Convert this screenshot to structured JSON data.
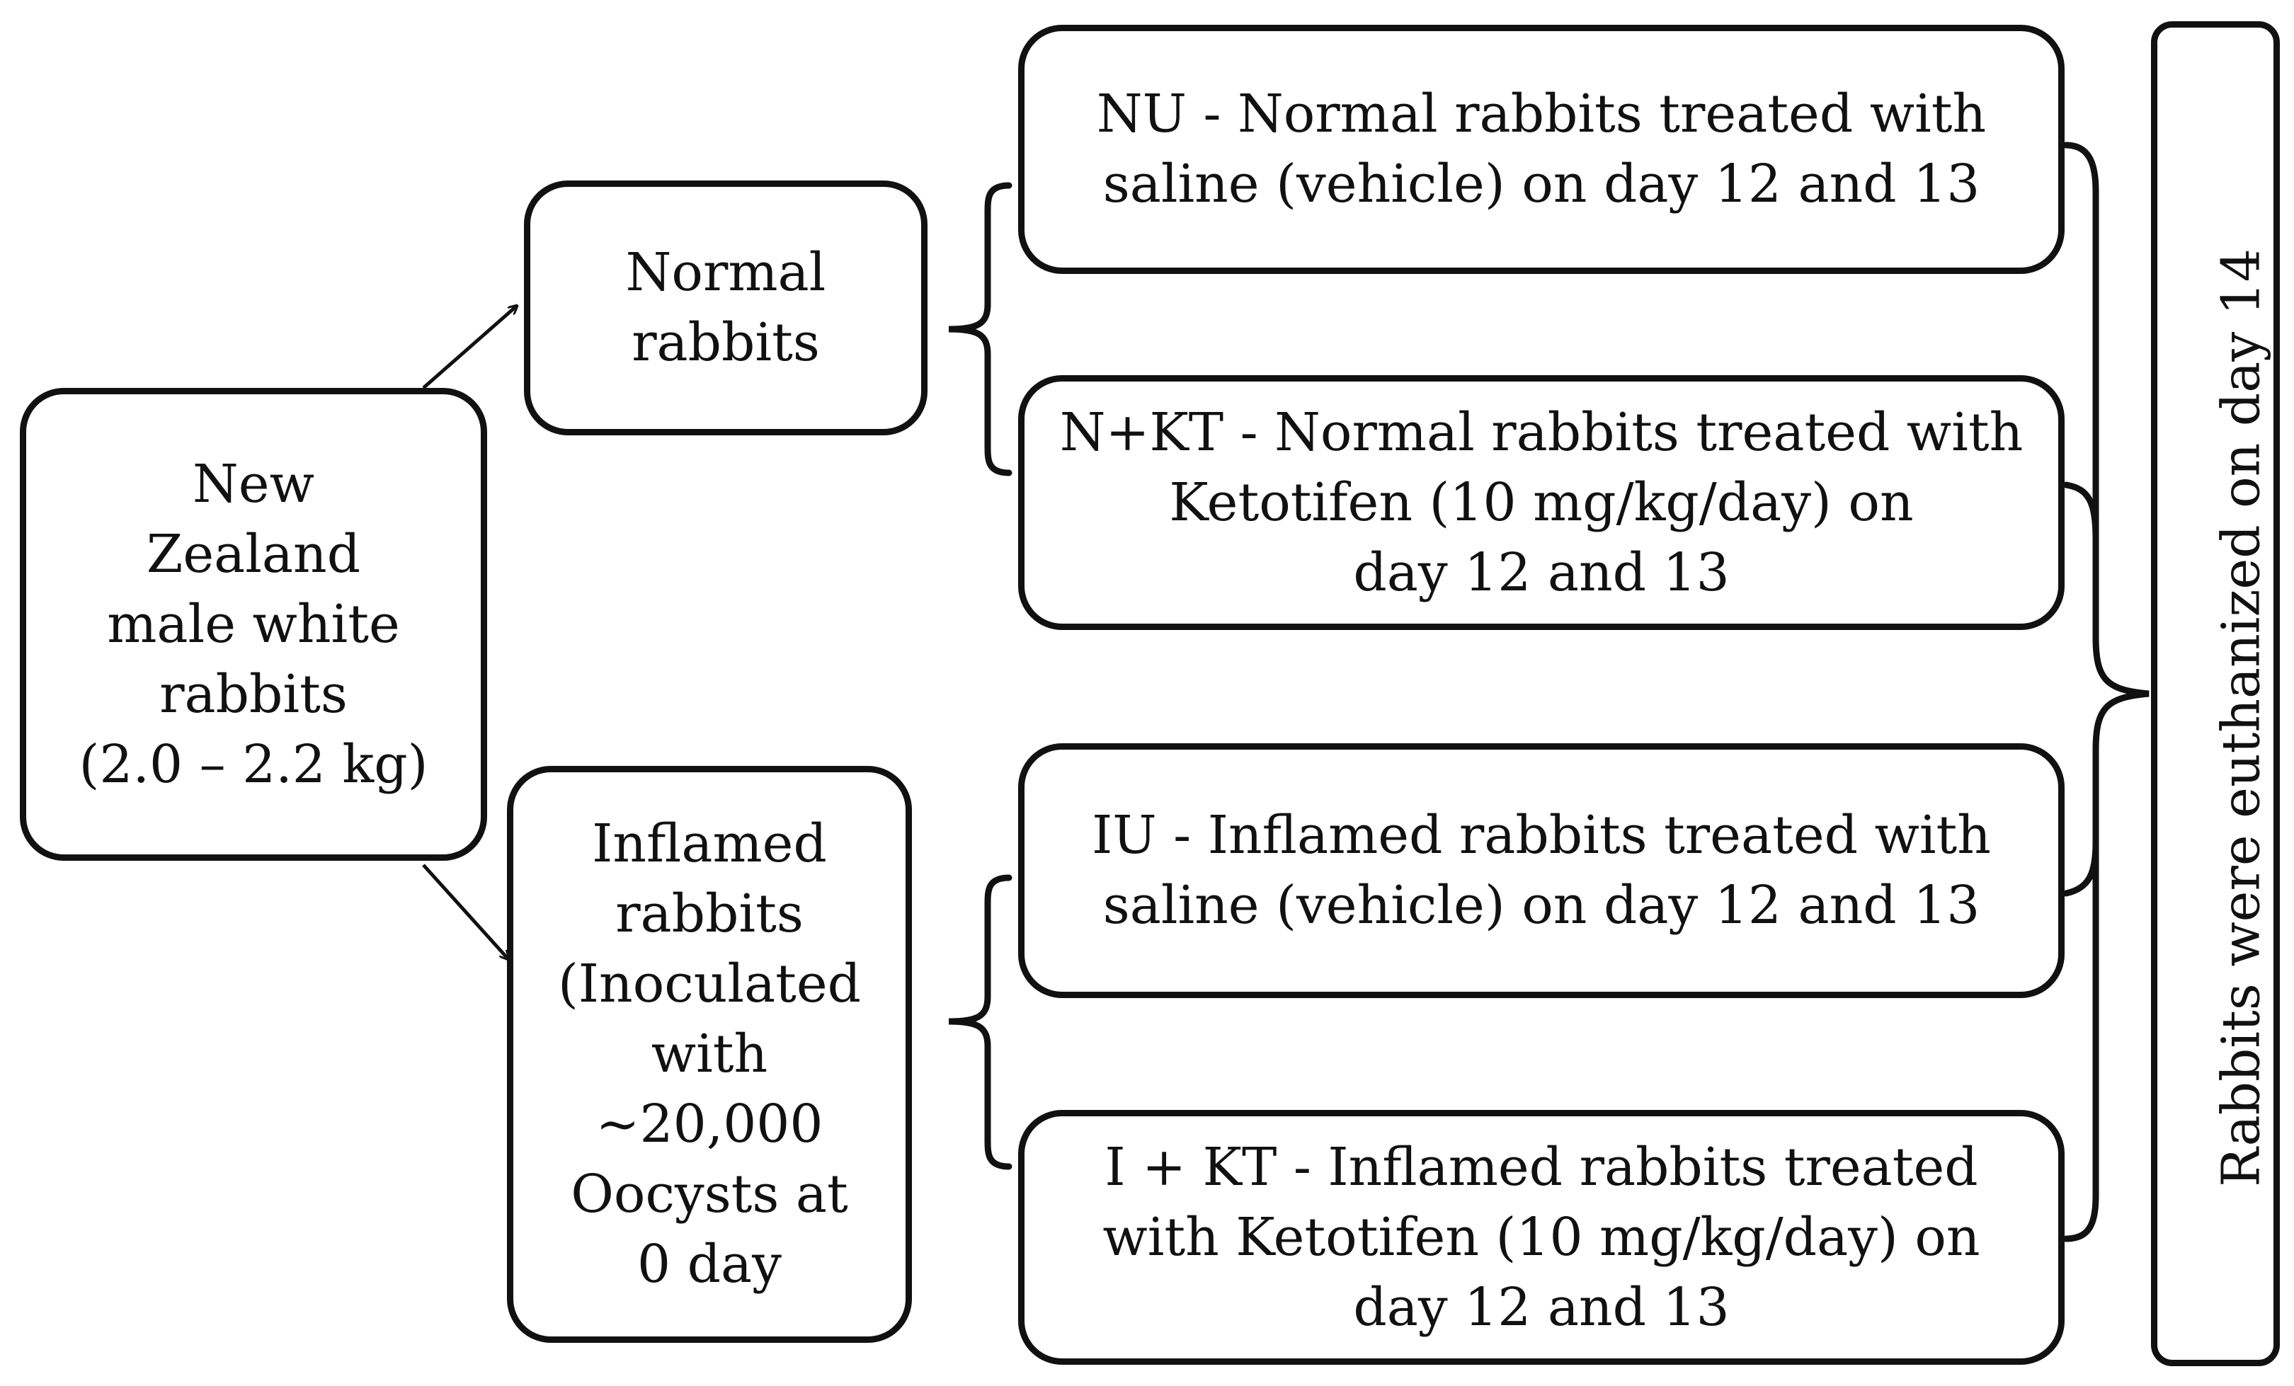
{
  "origin": {
    "lines": [
      "New",
      "Zealand",
      "male white",
      "rabbits",
      "(2.0 – 2.2 kg)"
    ]
  },
  "normal_group": {
    "lines": [
      "Normal",
      "rabbits"
    ]
  },
  "inflamed_group": {
    "lines": [
      "Inflamed",
      "rabbits",
      "(Inoculated",
      "with",
      "~20,000",
      "Oocysts at",
      "0 day"
    ]
  },
  "treatments": {
    "nu": {
      "lines": [
        "NU - Normal rabbits treated with",
        "saline (vehicle) on day 12 and 13"
      ]
    },
    "nkt": {
      "lines": [
        "N+KT - Normal rabbits treated with",
        "Ketotifen (10 mg/kg/day) on",
        "day 12 and 13"
      ]
    },
    "iu": {
      "lines": [
        "IU - Inflamed rabbits treated with",
        "saline (vehicle) on day 12 and 13"
      ]
    },
    "ikt": {
      "lines": [
        "I + KT - Inflamed rabbits treated",
        "with Ketotifen (10 mg/kg/day) on",
        "day 12 and 13"
      ]
    }
  },
  "outcome": {
    "label": "Rabbits were euthanized on day 14"
  }
}
